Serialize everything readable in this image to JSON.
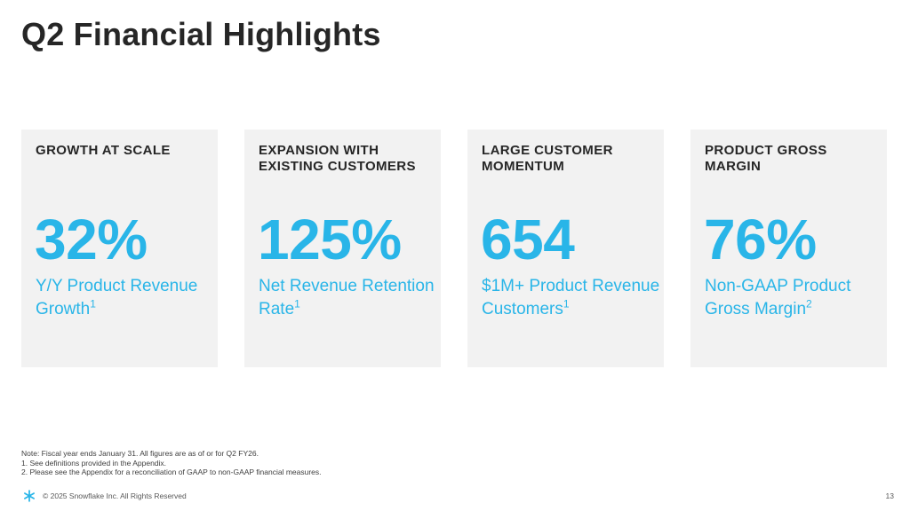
{
  "slide": {
    "title": "Q2 Financial Highlights"
  },
  "colors": {
    "accent": "#29b5e8",
    "card_bg": "#f2f2f2",
    "title": "#262626"
  },
  "cards": [
    {
      "heading": "GROWTH AT SCALE",
      "value": "32%",
      "desc": "Y/Y Product Revenue Growth",
      "note_ref": "1"
    },
    {
      "heading": "EXPANSION WITH EXISTING CUSTOMERS",
      "value": "125%",
      "desc": "Net Revenue Retention Rate",
      "note_ref": "1"
    },
    {
      "heading": "LARGE CUSTOMER MOMENTUM",
      "value": "654",
      "desc": "$1M+ Product Revenue Customers",
      "note_ref": "1"
    },
    {
      "heading": "PRODUCT GROSS MARGIN",
      "value": "76%",
      "desc": "Non-GAAP Product Gross Margin",
      "note_ref": "2"
    }
  ],
  "notes": [
    "Note: Fiscal year ends January 31. All figures are as of or for Q2 FY26.",
    "1. See definitions provided in the Appendix.",
    "2. Please see the Appendix for a reconciliation of GAAP to non-GAAP financial measures."
  ],
  "footer": {
    "logo_icon": "snowflake-icon",
    "copyright": "© 2025 Snowflake Inc. All Rights Reserved",
    "page_number": "13"
  }
}
